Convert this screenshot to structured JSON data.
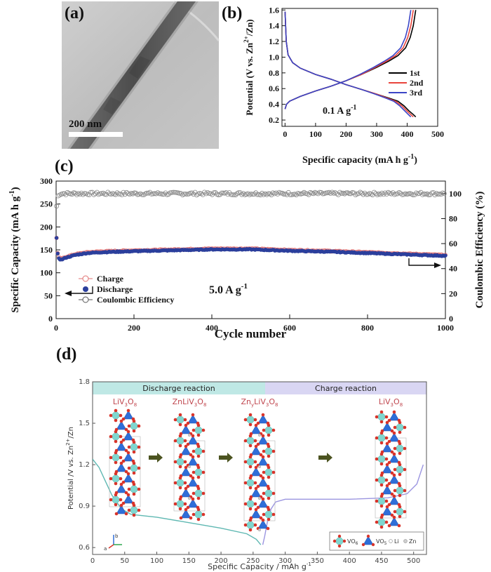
{
  "panel_labels": {
    "a": "(a)",
    "b": "(b)",
    "c": "(c)",
    "d": "(d)"
  },
  "panel_a": {
    "type": "micrograph",
    "scale_bar_label": "200 nm"
  },
  "colors": {
    "black": "#000000",
    "red": "#e8443c",
    "blue": "#3b45c6",
    "charge_marker": "#e07070",
    "discharge_marker": "#2b3f9c",
    "ce_marker": "#888888",
    "d_discharge_band": "#bfe8e5",
    "d_charge_band": "#d9d6f3",
    "d_discharge_curve": "#5fb8b2",
    "d_charge_curve": "#9b95e0",
    "vo6_cyan": "#7fd6cf",
    "vo4_blue": "#2f6ed8",
    "oxygen_red": "#d9342a"
  },
  "chart_data": [
    {
      "panel": "b",
      "type": "line",
      "xlabel": "Specific capacity (mA h g",
      "xlabel_sup": "-1",
      "xlabel_end": ")",
      "ylabel": "Potential (V vs. Zn",
      "ylabel_sup": "2+",
      "ylabel_end": "/Zn)",
      "xlim": [
        -10,
        500
      ],
      "ylim": [
        0.12,
        1.62
      ],
      "xticks": [
        "0",
        "100",
        "200",
        "300",
        "400",
        "500"
      ],
      "yticks": [
        "0.2",
        "0.4",
        "0.6",
        "0.8",
        "1.0",
        "1.2",
        "1.4",
        "1.6"
      ],
      "annotation": "0.1 A g",
      "annotation_sup": "-1",
      "legend": [
        "1st",
        "2nd",
        "3rd"
      ],
      "series": [
        {
          "name": "1st",
          "discharge": [
            [
              0,
              1.58
            ],
            [
              4,
              1.2
            ],
            [
              10,
              1.03
            ],
            [
              25,
              0.93
            ],
            [
              50,
              0.86
            ],
            [
              100,
              0.78
            ],
            [
              150,
              0.72
            ],
            [
              200,
              0.65
            ],
            [
              250,
              0.59
            ],
            [
              300,
              0.53
            ],
            [
              340,
              0.48
            ],
            [
              370,
              0.44
            ],
            [
              390,
              0.38
            ],
            [
              405,
              0.32
            ],
            [
              420,
              0.27
            ],
            [
              428,
              0.24
            ]
          ],
          "charge": [
            [
              0,
              0.34
            ],
            [
              5,
              0.4
            ],
            [
              15,
              0.44
            ],
            [
              50,
              0.5
            ],
            [
              100,
              0.57
            ],
            [
              150,
              0.63
            ],
            [
              200,
              0.7
            ],
            [
              250,
              0.78
            ],
            [
              300,
              0.87
            ],
            [
              340,
              0.95
            ],
            [
              370,
              1.02
            ],
            [
              395,
              1.12
            ],
            [
              410,
              1.25
            ],
            [
              420,
              1.4
            ],
            [
              428,
              1.6
            ]
          ]
        },
        {
          "name": "2nd",
          "discharge": [
            [
              0,
              1.58
            ],
            [
              4,
              1.2
            ],
            [
              10,
              1.03
            ],
            [
              25,
              0.93
            ],
            [
              50,
              0.86
            ],
            [
              100,
              0.78
            ],
            [
              150,
              0.72
            ],
            [
              200,
              0.65
            ],
            [
              250,
              0.59
            ],
            [
              300,
              0.53
            ],
            [
              335,
              0.48
            ],
            [
              362,
              0.44
            ],
            [
              383,
              0.38
            ],
            [
              398,
              0.32
            ],
            [
              412,
              0.27
            ],
            [
              420,
              0.24
            ]
          ],
          "charge": [
            [
              0,
              0.34
            ],
            [
              5,
              0.4
            ],
            [
              15,
              0.44
            ],
            [
              50,
              0.5
            ],
            [
              100,
              0.57
            ],
            [
              150,
              0.63
            ],
            [
              200,
              0.7
            ],
            [
              250,
              0.78
            ],
            [
              295,
              0.87
            ],
            [
              333,
              0.95
            ],
            [
              362,
              1.02
            ],
            [
              387,
              1.12
            ],
            [
              402,
              1.25
            ],
            [
              412,
              1.4
            ],
            [
              420,
              1.6
            ]
          ]
        },
        {
          "name": "3rd",
          "discharge": [
            [
              0,
              1.58
            ],
            [
              4,
              1.2
            ],
            [
              10,
              1.03
            ],
            [
              25,
              0.93
            ],
            [
              50,
              0.86
            ],
            [
              100,
              0.78
            ],
            [
              150,
              0.72
            ],
            [
              200,
              0.65
            ],
            [
              250,
              0.59
            ],
            [
              295,
              0.53
            ],
            [
              330,
              0.48
            ],
            [
              356,
              0.44
            ],
            [
              376,
              0.38
            ],
            [
              391,
              0.32
            ],
            [
              404,
              0.27
            ],
            [
              412,
              0.24
            ]
          ],
          "charge": [
            [
              0,
              0.34
            ],
            [
              5,
              0.4
            ],
            [
              15,
              0.44
            ],
            [
              50,
              0.5
            ],
            [
              100,
              0.57
            ],
            [
              150,
              0.63
            ],
            [
              200,
              0.7
            ],
            [
              245,
              0.78
            ],
            [
              290,
              0.87
            ],
            [
              326,
              0.95
            ],
            [
              354,
              1.02
            ],
            [
              379,
              1.12
            ],
            [
              394,
              1.25
            ],
            [
              404,
              1.4
            ],
            [
              412,
              1.6
            ]
          ]
        }
      ]
    },
    {
      "panel": "c",
      "type": "scatter",
      "xlabel": "Cycle number",
      "ylabel": "Specific Capacity (mA h g",
      "ylabel_sup": "-1",
      "ylabel_end": ")",
      "y2label": "Coulombic Efficiency (%)",
      "xlim": [
        0,
        1000
      ],
      "ylim": [
        0,
        300
      ],
      "y2lim": [
        0,
        110
      ],
      "xticks": [
        "0",
        "200",
        "400",
        "600",
        "800",
        "1000"
      ],
      "yticks": [
        "0",
        "50",
        "100",
        "150",
        "200",
        "250",
        "300"
      ],
      "y2ticks": [
        "0",
        "20",
        "40",
        "60",
        "80",
        "100"
      ],
      "annotation": "5.0 A g",
      "annotation_sup": "-1",
      "legend": [
        "Charge",
        "Discharge",
        "Coulombic Efficiency"
      ],
      "capacity_profile": [
        [
          1,
          175
        ],
        [
          3,
          145
        ],
        [
          6,
          133
        ],
        [
          12,
          128
        ],
        [
          25,
          133
        ],
        [
          50,
          139
        ],
        [
          80,
          143
        ],
        [
          120,
          145
        ],
        [
          200,
          147
        ],
        [
          300,
          149
        ],
        [
          400,
          151
        ],
        [
          500,
          151
        ],
        [
          600,
          148
        ],
        [
          700,
          146
        ],
        [
          800,
          143
        ],
        [
          900,
          140
        ],
        [
          1000,
          137
        ]
      ],
      "coulombic_efficiency_profile": [
        [
          1,
          90
        ],
        [
          5,
          98
        ],
        [
          10,
          100
        ],
        [
          1000,
          100
        ]
      ]
    },
    {
      "panel": "d",
      "type": "line",
      "xlabel": "Specific Capacity / mAh g",
      "xlabel_sup": "-1",
      "ylabel": "Potential /V vs. Zn",
      "ylabel_sup": "2+",
      "ylabel_end": "/Zn",
      "xlim": [
        0,
        520
      ],
      "ylim": [
        0.55,
        1.8
      ],
      "xticks": [
        "0",
        "50",
        "100",
        "150",
        "200",
        "250",
        "300",
        "350",
        "400",
        "450",
        "500"
      ],
      "yticks": [
        "0.6",
        "0.9",
        "1.2",
        "1.5",
        "1.8"
      ],
      "bands": [
        "Discharge reaction",
        "Charge reaction"
      ],
      "phase_labels": [
        {
          "text": "LiV",
          "sub1": "3",
          "mid": "O",
          "sub2": "8"
        },
        {
          "text": "ZnLiV",
          "sub1": "3",
          "mid": "O",
          "sub2": "8"
        },
        {
          "text": "Zn",
          "sub0": "y",
          "text2": "LiV",
          "sub1": "3",
          "mid": "O",
          "sub2": "8"
        },
        {
          "text": "LiV",
          "sub1": "3",
          "mid": "O",
          "sub2": "8"
        }
      ],
      "legend": {
        "vo6": "VO",
        "vo6_sub": "6",
        "vo4": "VO",
        "vo4_sub": "5",
        "li": "Li",
        "zn": "Zn"
      },
      "discharge_curve": [
        [
          0,
          1.24
        ],
        [
          10,
          1.18
        ],
        [
          20,
          1.08
        ],
        [
          30,
          0.98
        ],
        [
          45,
          0.88
        ],
        [
          60,
          0.84
        ],
        [
          100,
          0.82
        ],
        [
          150,
          0.78
        ],
        [
          200,
          0.74
        ],
        [
          240,
          0.7
        ],
        [
          255,
          0.66
        ],
        [
          262,
          0.62
        ]
      ],
      "charge_curve": [
        [
          265,
          0.62
        ],
        [
          268,
          0.68
        ],
        [
          272,
          0.78
        ],
        [
          278,
          0.88
        ],
        [
          285,
          0.93
        ],
        [
          300,
          0.95
        ],
        [
          400,
          0.95
        ],
        [
          460,
          0.96
        ],
        [
          490,
          0.99
        ],
        [
          505,
          1.06
        ],
        [
          515,
          1.2
        ]
      ]
    }
  ]
}
